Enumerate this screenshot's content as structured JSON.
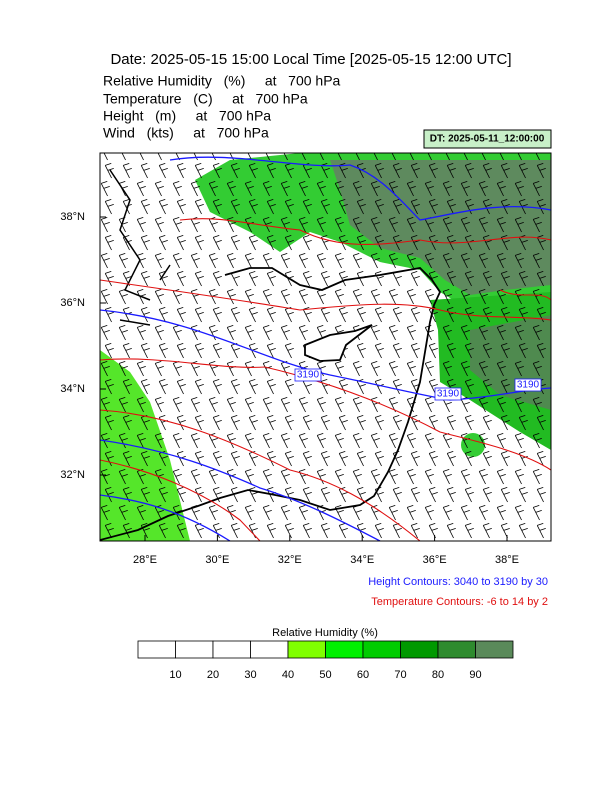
{
  "header": {
    "title": "Date: 2025-05-15  15:00 Local Time [2025-05-15  12:00 UTC]",
    "fields": [
      "Relative Humidity   (%)     at   700 hPa",
      "Temperature   (C)     at   700 hPa",
      "Height   (m)     at   700 hPa",
      "Wind   (kts)     at   700 hPa"
    ],
    "valid": "DT: 2025-05-11_12:00:00"
  },
  "map": {
    "lon_ticks": [
      "28°E",
      "30°E",
      "32°E",
      "34°E",
      "36°E",
      "38°E"
    ],
    "lat_ticks": [
      "38°N",
      "36°N",
      "34°N",
      "32°N"
    ],
    "contour_labels": [
      "3190",
      "3190",
      "3190"
    ]
  },
  "legend": {
    "height": "Height Contours: 3040 to 3190 by 30",
    "temperature": "Temperature Contours: -6 to 14 by 2"
  },
  "colorbar": {
    "title": "Relative Humidity  (%)",
    "ticks": [
      10,
      20,
      30,
      40,
      50,
      60,
      70,
      80,
      90
    ],
    "colors": [
      "#ffffff",
      "#ffffff",
      "#ffffff",
      "#ffffff",
      "#80ff00",
      "#00f000",
      "#00cc00",
      "#009900",
      "#2e8b2e",
      "#5a8a5a"
    ]
  }
}
